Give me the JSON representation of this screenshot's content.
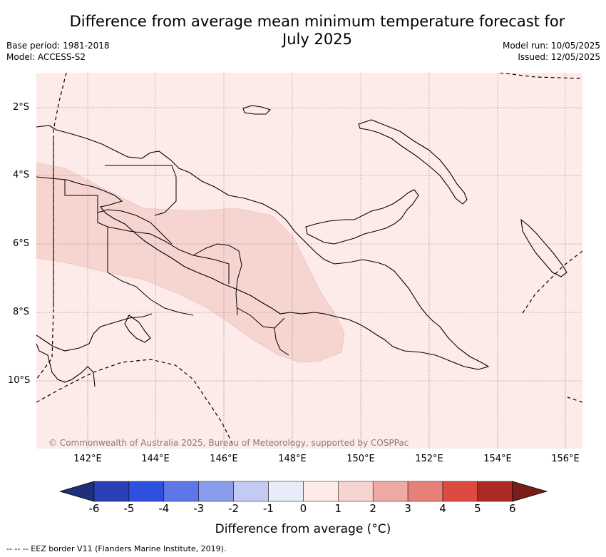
{
  "title": "Difference from average mean minimum temperature forecast for July 2025",
  "meta": {
    "base_period": "Base period: 1981-2018",
    "model": "Model: ACCESS-S2",
    "model_run": "Model run: 10/05/2025",
    "issued": "Issued: 12/05/2025"
  },
  "map": {
    "lat_labels": [
      "2°S",
      "4°S",
      "6°S",
      "8°S",
      "10°S"
    ],
    "lon_labels": [
      "142°E",
      "144°E",
      "146°E",
      "148°E",
      "150°E",
      "152°E",
      "154°E",
      "156°E"
    ],
    "copyright": "© Commonwealth of Australia 2025, Bureau of Meteorology, supported by COSPPac",
    "background_class": "0 to 1",
    "anomaly_region_class": "1 to 2"
  },
  "colorbar": {
    "ticks": [
      "-6",
      "-5",
      "-4",
      "-3",
      "-2",
      "-1",
      "0",
      "1",
      "2",
      "3",
      "4",
      "5",
      "6"
    ],
    "colors": [
      "#1f2f7a",
      "#2a3fb3",
      "#2f4fe0",
      "#5f77e6",
      "#8a9ded",
      "#c3cbf5",
      "#e8ecfa",
      "#fcebe9",
      "#f6d4d0",
      "#f0aaa5",
      "#e8807a",
      "#dd4a40",
      "#ad2a24",
      "#7a1c18"
    ],
    "label": "Difference from average (°C)"
  },
  "footnote": "-- -- -- EEZ border V11 (Flanders Marine Institute, 2019)."
}
